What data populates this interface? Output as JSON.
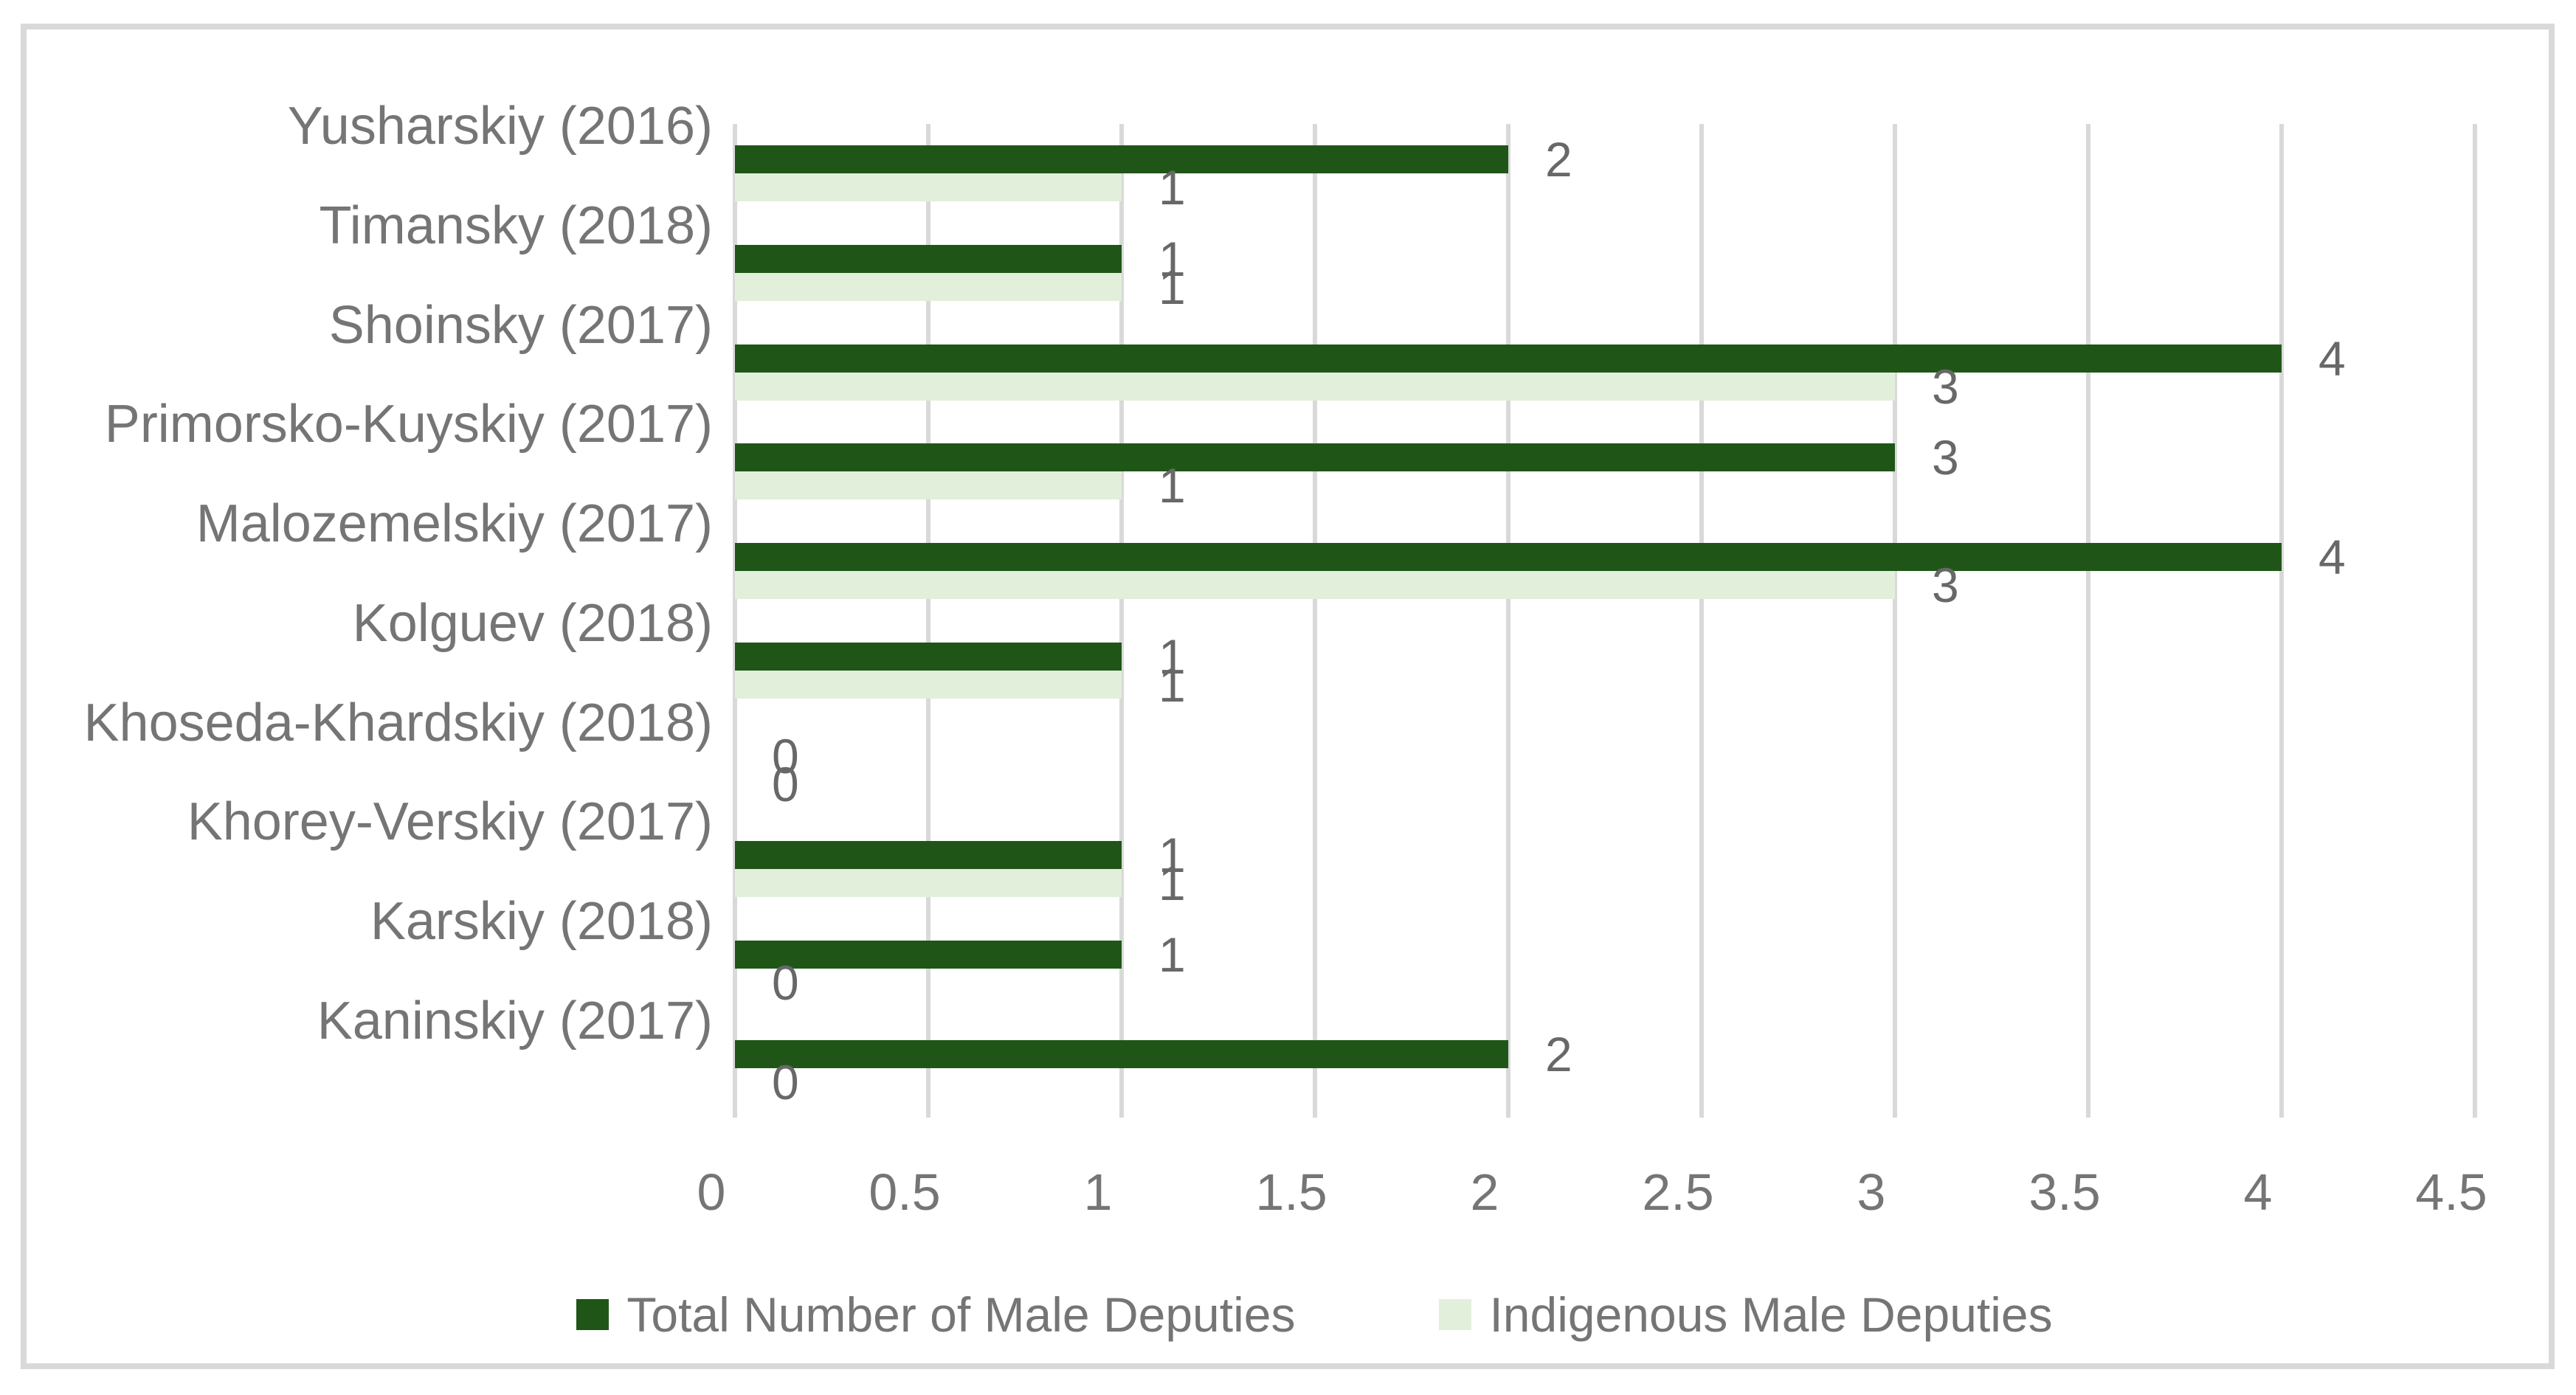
{
  "figure": {
    "background_color": "#ffffff",
    "border_color": "#d9d9d9"
  },
  "chart_data": {
    "type": "bar",
    "orientation": "horizontal",
    "title": "",
    "xlabel": "",
    "ylabel": "",
    "categories": [
      "Yusharskiy (2016)",
      "Timansky (2018)",
      "Shoinsky (2017)",
      "Primorsko-Kuyskiy (2017)",
      "Malozemelskiy (2017)",
      "Kolguev (2018)",
      "Khoseda-Khardskiy (2018)",
      "Khorey-Verskiy (2017)",
      "Karskiy (2018)",
      "Kaninskiy (2017)"
    ],
    "series": [
      {
        "name": "Total Number of Male Deputies",
        "color": "#1f5618",
        "values": [
          2,
          1,
          4,
          3,
          4,
          1,
          0,
          1,
          1,
          2
        ]
      },
      {
        "name": "Indigenous Male Deputies",
        "color": "#e2efda",
        "values": [
          1,
          1,
          3,
          1,
          3,
          1,
          0,
          1,
          0,
          0
        ]
      }
    ],
    "x_ticks": [
      "0",
      "0.5",
      "1",
      "1.5",
      "2",
      "2.5",
      "3",
      "3.5",
      "4",
      "4.5"
    ],
    "xlim": [
      0,
      4.5
    ],
    "grid": true,
    "data_labels_shown": true,
    "legend_position": "bottom",
    "colors": {
      "gridline": "#d9d9d9",
      "axis_text": "#757575",
      "data_label_text": "#686868"
    }
  }
}
